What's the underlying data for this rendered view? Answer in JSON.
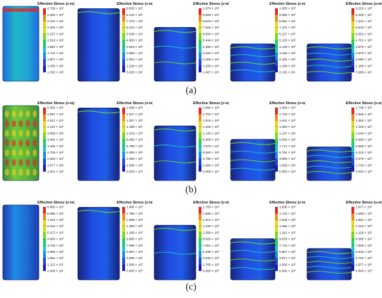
{
  "legend_title": "Effective Stress (v-m)",
  "captions": [
    "(a)",
    "(b)",
    "(c)"
  ],
  "colors": {
    "scale": [
      "#e8241c",
      "#f08a1c",
      "#f4d21c",
      "#c8e81c",
      "#6ee01c",
      "#1cd06a",
      "#1cc4c4",
      "#1c8ae8",
      "#1c4ae0",
      "#1a1ab8"
    ]
  },
  "rows": [
    {
      "panels": [
        {
          "values": [
            "2.706 × 10²",
            "2.569 × 10²",
            "2.431 × 10²",
            "2.294 × 10²",
            "2.157 × 10²",
            "2.019 × 10²",
            "1.882 × 10²",
            "1.744 × 10²",
            "1.607 × 10²",
            "1.469 × 10²",
            "1.332 × 10²"
          ],
          "height": 1.0,
          "crush": 0
        },
        {
          "values": [
            "9.005 × 10²",
            "8.140 × 10²",
            "7.276 × 10²",
            "6.412 × 10²",
            "5.548 × 10²",
            "4.683 × 10²",
            "3.819 × 10²",
            "2.955 × 10²",
            "2.091 × 10²",
            "1.226 × 10²",
            "3.620 × 10¹"
          ],
          "height": 0.97,
          "crush": 0.2
        },
        {
          "values": [
            "1.074 × 10³",
            "9.683 × 10²",
            "8.623 × 10²",
            "7.564 × 10²",
            "6.504 × 10²",
            "5.444 × 10²",
            "4.385 × 10²",
            "3.325 × 10²",
            "2.266 × 10²",
            "1.206 × 10²",
            "1.467 × 10¹"
          ],
          "height": 0.72,
          "crush": 0.45
        },
        {
          "values": [
            "1.005 × 10³",
            "9.068 × 10²",
            "8.084 × 10²",
            "7.101 × 10²",
            "6.117 × 10²",
            "5.133 × 10²",
            "4.149 × 10²",
            "3.166 × 10²",
            "2.182 × 10²",
            "1.198 × 10²",
            "2.145 × 10¹"
          ],
          "height": 0.5,
          "crush": 0.7
        },
        {
          "values": [
            "9.216 × 10²",
            "8.325 × 10²",
            "7.434 × 10²",
            "6.543 × 10²",
            "5.652 × 10²",
            "4.761 × 10²",
            "3.870 × 10²",
            "2.979 × 10²",
            "2.089 × 10²",
            "1.198 × 10²",
            "3.069 × 10¹"
          ],
          "height": 0.5,
          "crush": 0.8
        }
      ]
    },
    {
      "panels": [
        {
          "values": [
            "5.363 × 10²",
            "4.987 × 10²",
            "4.611 × 10²",
            "4.234 × 10²",
            "3.858 × 10²",
            "3.482 × 10²",
            "3.106 × 10²",
            "2.729 × 10²",
            "2.353 × 10²",
            "1.977 × 10²",
            "1.601 × 10²"
          ],
          "height": 1.0,
          "crush": 0
        },
        {
          "values": [
            "1.696 × 10³",
            "1.527 × 10³",
            "1.357 × 10³",
            "1.188 × 10³",
            "1.018 × 10³",
            "8.482 × 10²",
            "6.786 × 10²",
            "5.089 × 10²",
            "3.393 × 10²",
            "1.696 × 10²",
            "0.000 × 10⁰"
          ],
          "height": 0.97,
          "crush": 0.15
        },
        {
          "values": [
            "1.894 × 10³",
            "1.704 × 10³",
            "1.515 × 10³",
            "1.326 × 10³",
            "1.136 × 10³",
            "9.469 × 10²",
            "7.575 × 10²",
            "5.682 × 10²",
            "3.788 × 10²",
            "1.894 × 10²",
            "0.000 × 10⁰"
          ],
          "height": 0.73,
          "crush": 0.45
        },
        {
          "values": [
            "1.928 × 10³",
            "1.735 × 10³",
            "1.542 × 10³",
            "1.350 × 10³",
            "1.157 × 10³",
            "9.640 × 10²",
            "7.712 × 10²",
            "5.784 × 10²",
            "3.856 × 10²",
            "1.928 × 10²",
            "0.000 × 10⁰"
          ],
          "height": 0.55,
          "crush": 0.65
        },
        {
          "values": [
            "1.748 × 10³",
            "1.566 × 10³",
            "1.392 × 10³",
            "1.218 × 10³",
            "1.044 × 10³",
            "8.698 × 10²",
            "6.958 × 10²",
            "5.219 × 10²",
            "3.479 × 10²",
            "1.740 × 10²",
            "0.000 × 10⁰"
          ],
          "height": 0.45,
          "crush": 0.8
        }
      ]
    },
    {
      "panels": [
        {
          "values": [
            "8.960 × 10²",
            "8.088 × 10²",
            "7.216 × 10²",
            "6.344 × 10²",
            "5.472 × 10²",
            "4.600 × 10²",
            "3.728 × 10²",
            "2.856 × 10²",
            "1.984 × 10²",
            "1.113 × 10²",
            "2.406 × 10¹"
          ],
          "height": 1.0,
          "crush": 0
        },
        {
          "values": [
            "1.999 × 10³",
            "1.799 × 10³",
            "1.599 × 10³",
            "1.399 × 10³",
            "1.199 × 10³",
            "9.995 × 10²",
            "7.996 × 10²",
            "5.997 × 10²",
            "3.998 × 10²",
            "1.999 × 10²",
            "0.000 × 10⁰"
          ],
          "height": 0.97,
          "crush": 0.15
        },
        {
          "values": [
            "1.765 × 10³",
            "1.589 × 10³",
            "1.412 × 10³",
            "1.236 × 10³",
            "1.059 × 10³",
            "8.826 × 10²",
            "7.061 × 10²",
            "5.296 × 10²",
            "3.530 × 10²",
            "1.765 × 10²",
            "0.000 × 10⁰"
          ],
          "height": 0.73,
          "crush": 0.4
        },
        {
          "values": [
            "1.936 × 10³",
            "1.742 × 10³",
            "1.548 × 10³",
            "1.355 × 10³",
            "1.161 × 10³",
            "9.678 × 10²",
            "7.742 × 10²",
            "5.807 × 10²",
            "3.871 × 10²",
            "1.936 × 10²",
            "0.000 × 10⁰"
          ],
          "height": 0.55,
          "crush": 0.65
        },
        {
          "values": [
            "1.877 × 10³",
            "1.689 × 10³",
            "1.502 × 10³",
            "1.314 × 10³",
            "1.126 × 10³",
            "9.386 × 10²",
            "7.509 × 10²",
            "5.632 × 10²",
            "3.754 × 10²",
            "1.877 × 10²",
            "0.000 × 10⁰"
          ],
          "height": 0.42,
          "crush": 0.85
        }
      ]
    }
  ]
}
